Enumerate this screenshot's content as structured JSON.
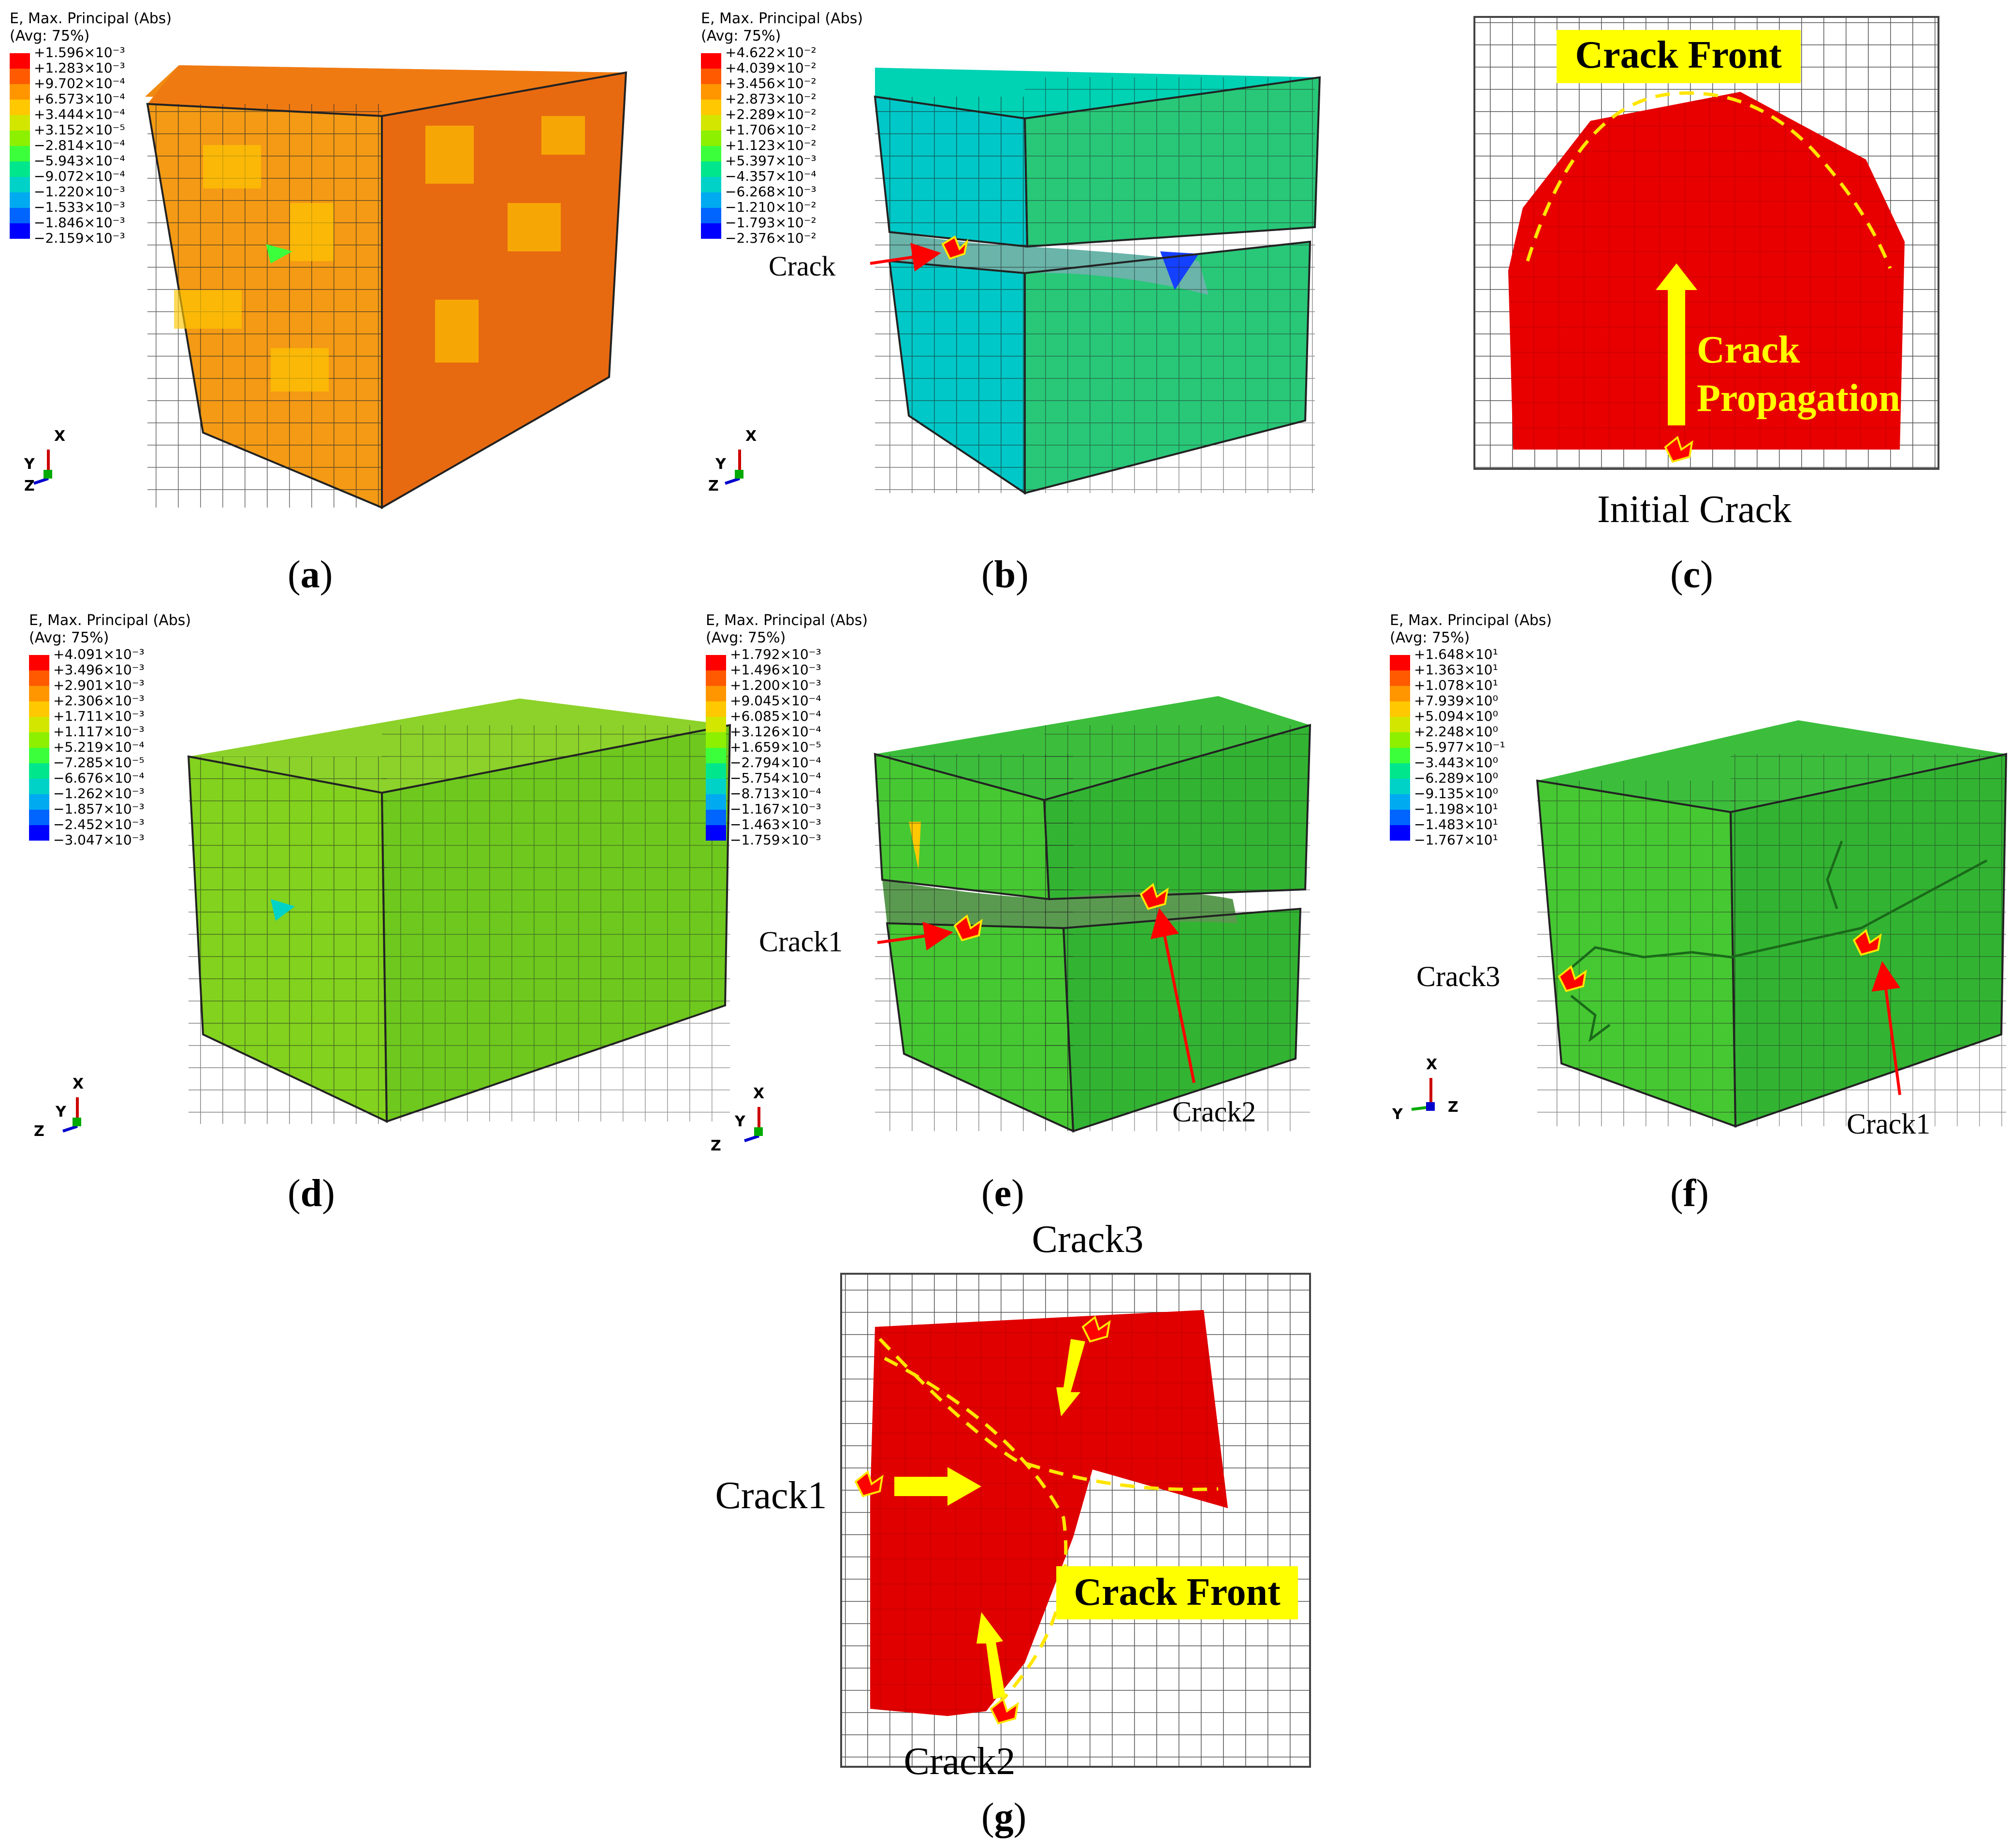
{
  "contour_title_line1": "E, Max. Principal (Abs)",
  "contour_title_line2": "(Avg: 75%)",
  "legend_colors": [
    "#ff0000",
    "#ff5a00",
    "#ff9600",
    "#ffc800",
    "#d2e600",
    "#8cf000",
    "#3cff3c",
    "#00e68c",
    "#00d2c8",
    "#00aaf0",
    "#0064ff",
    "#0000ff"
  ],
  "panels": [
    {
      "id": "a",
      "caption": "a",
      "legend": [
        "+1.596×10⁻³",
        "+1.283×10⁻³",
        "+9.702×10⁻⁴",
        "+6.573×10⁻⁴",
        "+3.444×10⁻⁴",
        "+3.152×10⁻⁵",
        "−2.814×10⁻⁴",
        "−5.943×10⁻⁴",
        "−9.072×10⁻⁴",
        "−1.220×10⁻³",
        "−1.533×10⁻³",
        "−1.846×10⁻³",
        "−2.159×10⁻³"
      ],
      "triad": {
        "x": "X",
        "y": "Y",
        "z": "Z"
      }
    },
    {
      "id": "b",
      "caption": "b",
      "legend": [
        "+4.622×10⁻²",
        "+4.039×10⁻²",
        "+3.456×10⁻²",
        "+2.873×10⁻²",
        "+2.289×10⁻²",
        "+1.706×10⁻²",
        "+1.123×10⁻²",
        "+5.397×10⁻³",
        "−4.357×10⁻⁴",
        "−6.268×10⁻³",
        "−1.210×10⁻²",
        "−1.793×10⁻²",
        "−2.376×10⁻²"
      ],
      "triad": {
        "x": "X",
        "y": "Y",
        "z": "Z"
      },
      "annotations": [
        "Crack"
      ]
    },
    {
      "id": "c",
      "caption": "c",
      "labels": {
        "front": "Crack Front",
        "propagation_1": "Crack",
        "propagation_2": "Propagation",
        "initial": "Initial Crack"
      }
    },
    {
      "id": "d",
      "caption": "d",
      "legend": [
        "+4.091×10⁻³",
        "+3.496×10⁻³",
        "+2.901×10⁻³",
        "+2.306×10⁻³",
        "+1.711×10⁻³",
        "+1.117×10⁻³",
        "+5.219×10⁻⁴",
        "−7.285×10⁻⁵",
        "−6.676×10⁻⁴",
        "−1.262×10⁻³",
        "−1.857×10⁻³",
        "−2.452×10⁻³",
        "−3.047×10⁻³"
      ],
      "triad": {
        "x": "X",
        "y": "Y",
        "z": "Z"
      }
    },
    {
      "id": "e",
      "caption": "e",
      "legend": [
        "+1.792×10⁻³",
        "+1.496×10⁻³",
        "+1.200×10⁻³",
        "+9.045×10⁻⁴",
        "+6.085×10⁻⁴",
        "+3.126×10⁻⁴",
        "+1.659×10⁻⁵",
        "−2.794×10⁻⁴",
        "−5.754×10⁻⁴",
        "−8.713×10⁻⁴",
        "−1.167×10⁻³",
        "−1.463×10⁻³",
        "−1.759×10⁻³"
      ],
      "triad": {
        "x": "X",
        "y": "Y",
        "z": "Z"
      },
      "annotations": [
        "Crack1",
        "Crack2"
      ]
    },
    {
      "id": "f",
      "caption": "f",
      "legend": [
        "+1.648×10¹",
        "+1.363×10¹",
        "+1.078×10¹",
        "+7.939×10⁰",
        "+5.094×10⁰",
        "+2.248×10⁰",
        "−5.977×10⁻¹",
        "−3.443×10⁰",
        "−6.289×10⁰",
        "−9.135×10⁰",
        "−1.198×10¹",
        "−1.483×10¹",
        "−1.767×10¹"
      ],
      "triad": {
        "x": "X",
        "y": "Y",
        "z": "Z"
      },
      "annotations": [
        "Crack3",
        "Crack1"
      ]
    },
    {
      "id": "g",
      "caption": "g",
      "labels": {
        "crack3": "Crack3",
        "crack1": "Crack1",
        "crack2": "Crack2",
        "front": "Crack Front"
      }
    }
  ]
}
